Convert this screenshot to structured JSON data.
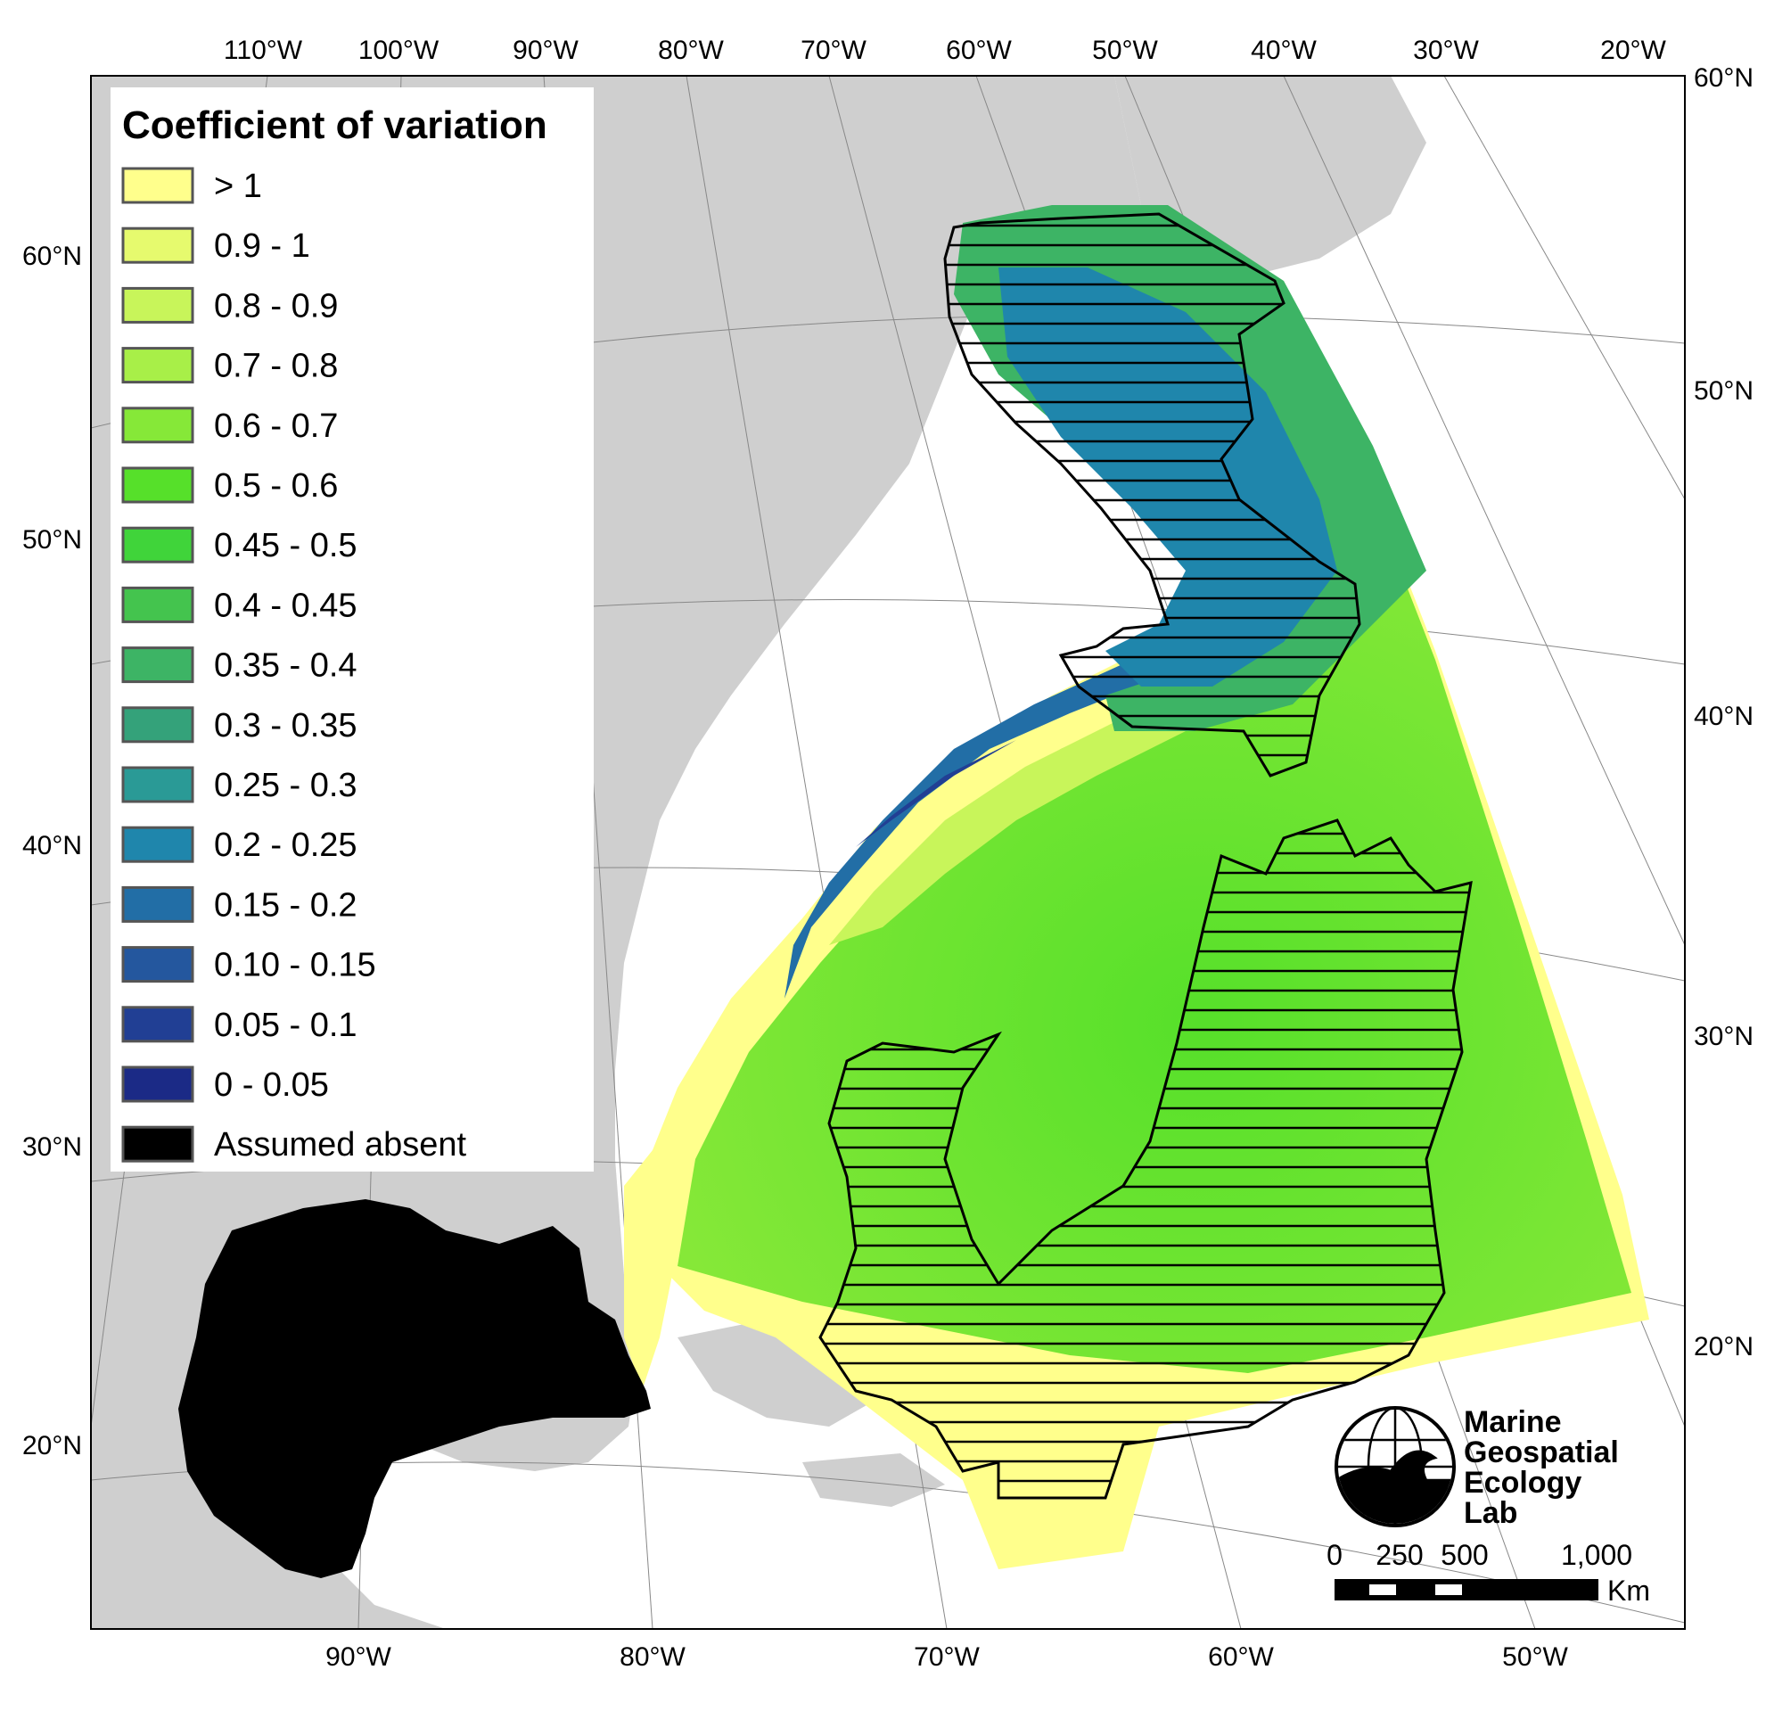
{
  "map": {
    "top_lon_labels": [
      "110°W",
      "100°W",
      "90°W",
      "80°W",
      "70°W",
      "60°W",
      "50°W",
      "40°W",
      "30°W",
      "20°W"
    ],
    "bottom_lon_labels": [
      "90°W",
      "80°W",
      "70°W",
      "60°W",
      "50°W"
    ],
    "left_lat_labels": [
      "60°N",
      "50°N",
      "40°N",
      "30°N",
      "20°N"
    ],
    "right_lat_labels": [
      "60°N",
      "50°N",
      "40°N",
      "30°N",
      "20°N"
    ]
  },
  "legend": {
    "title": "Coefficient of variation",
    "items": [
      {
        "label": "> 1",
        "color": "#ffff8c"
      },
      {
        "label": "0.9 - 1",
        "color": "#e6fa6e"
      },
      {
        "label": "0.8 - 0.9",
        "color": "#c8f55a"
      },
      {
        "label": "0.7 - 0.8",
        "color": "#a8ef48"
      },
      {
        "label": "0.6 - 0.7",
        "color": "#86e838"
      },
      {
        "label": "0.5 - 0.6",
        "color": "#56e02a"
      },
      {
        "label": "0.45 - 0.5",
        "color": "#40d43a"
      },
      {
        "label": "0.4 - 0.45",
        "color": "#44c44e"
      },
      {
        "label": "0.35 - 0.4",
        "color": "#3db465"
      },
      {
        "label": "0.3 - 0.35",
        "color": "#34a27a"
      },
      {
        "label": "0.25 - 0.3",
        "color": "#2a9a96"
      },
      {
        "label": "0.2 - 0.25",
        "color": "#1f86ac"
      },
      {
        "label": "0.15 - 0.2",
        "color": "#226ea6"
      },
      {
        "label": "0.10 - 0.15",
        "color": "#24579e"
      },
      {
        "label": "0.05 - 0.1",
        "color": "#213f94"
      },
      {
        "label": "0 - 0.05",
        "color": "#1b2a86"
      },
      {
        "label": "Assumed absent",
        "color": "#000000"
      }
    ]
  },
  "logo": {
    "line1": "Marine",
    "line2": "Geospatial",
    "line3": "Ecology",
    "line4": "Lab"
  },
  "scalebar": {
    "labels": [
      "0",
      "250",
      "500",
      "1,000"
    ],
    "unit": "Km"
  },
  "colors": {
    "land": "#cfcfcf",
    "background": "#ffffff",
    "absent": "#000000"
  }
}
